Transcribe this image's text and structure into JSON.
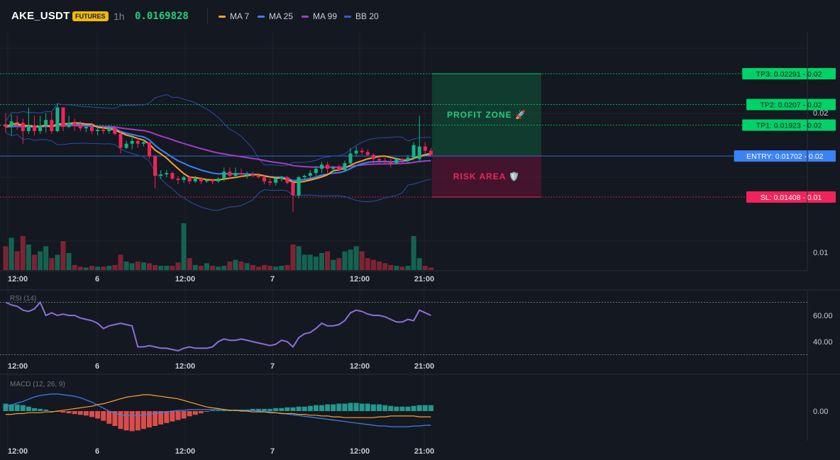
{
  "header": {
    "symbol": "AKE_USDT",
    "badge": "FUTURES",
    "timeframe": "1h",
    "price": "0.0169828",
    "legend": [
      {
        "label": "MA 7",
        "color": "#f7a32b"
      },
      {
        "label": "MA 25",
        "color": "#3b82f6"
      },
      {
        "label": "MA 99",
        "color": "#a43bc7"
      },
      {
        "label": "BB 20",
        "color": "#2f5fc9"
      }
    ]
  },
  "colors": {
    "up": "#13b585",
    "down": "#f0245a",
    "ma7": "#f7a32b",
    "ma25": "#3b82f6",
    "ma99": "#a43bc7",
    "bb": "#2a4ea8",
    "tp": "#00d26a",
    "entry": "#3b82f6",
    "sl": "#f0245a",
    "rsi": "#8b6fd6",
    "macd": "#3b82f6",
    "signal": "#f7a32b"
  },
  "chart_data": [
    {
      "type": "candlestick",
      "title": "",
      "x_ticks": [
        "12:00",
        "6",
        "12:00",
        "7",
        "12:00",
        "21:00"
      ],
      "y_ticks": [
        "0.02",
        "0.01"
      ],
      "levels": [
        {
          "label": "TP3: 0.02291",
          "axis_value": "0.02",
          "price": 0.02291
        },
        {
          "label": "TP2: 0.0207",
          "axis_value": "0.02",
          "price": 0.0207
        },
        {
          "label": "TP1: 0.01923",
          "axis_value": "0.02",
          "price": 0.01923
        },
        {
          "label": "ENTRY: 0.01702",
          "axis_value": "0.02",
          "price": 0.01702
        },
        {
          "label": "SL: 0.01408",
          "axis_value": "0.01",
          "price": 0.01408
        }
      ],
      "zones": [
        {
          "label": "PROFIT ZONE",
          "emoji": "🚀",
          "from": 0.01702,
          "to": 0.02291
        },
        {
          "label": "RISK AREA",
          "emoji": "🛡️",
          "from": 0.01408,
          "to": 0.01702
        }
      ],
      "candles": [
        {
          "o": 0.0193,
          "h": 0.0201,
          "l": 0.0187,
          "c": 0.0191
        },
        {
          "o": 0.0191,
          "h": 0.02,
          "l": 0.0185,
          "c": 0.0195
        },
        {
          "o": 0.01945,
          "h": 0.0199,
          "l": 0.0189,
          "c": 0.0194
        },
        {
          "o": 0.0194,
          "h": 0.0197,
          "l": 0.0179,
          "c": 0.0188
        },
        {
          "o": 0.0188,
          "h": 0.0205,
          "l": 0.0186,
          "c": 0.0192
        },
        {
          "o": 0.0192,
          "h": 0.0199,
          "l": 0.0185,
          "c": 0.0188
        },
        {
          "o": 0.0188,
          "h": 0.0199,
          "l": 0.0186,
          "c": 0.0192
        },
        {
          "o": 0.0192,
          "h": 0.0201,
          "l": 0.0187,
          "c": 0.0196
        },
        {
          "o": 0.0196,
          "h": 0.0202,
          "l": 0.0186,
          "c": 0.0188
        },
        {
          "o": 0.0188,
          "h": 0.0208,
          "l": 0.0187,
          "c": 0.0205
        },
        {
          "o": 0.0205,
          "h": 0.0205,
          "l": 0.0188,
          "c": 0.0191
        },
        {
          "o": 0.0191,
          "h": 0.0199,
          "l": 0.019,
          "c": 0.0194
        },
        {
          "o": 0.0194,
          "h": 0.0197,
          "l": 0.0188,
          "c": 0.0192
        },
        {
          "o": 0.0192,
          "h": 0.0195,
          "l": 0.0188,
          "c": 0.019
        },
        {
          "o": 0.019,
          "h": 0.0192,
          "l": 0.0187,
          "c": 0.0191
        },
        {
          "o": 0.0191,
          "h": 0.0194,
          "l": 0.0186,
          "c": 0.0188
        },
        {
          "o": 0.0188,
          "h": 0.0191,
          "l": 0.0185,
          "c": 0.0189
        },
        {
          "o": 0.0189,
          "h": 0.0191,
          "l": 0.0186,
          "c": 0.0188
        },
        {
          "o": 0.0188,
          "h": 0.0192,
          "l": 0.0186,
          "c": 0.019
        },
        {
          "o": 0.019,
          "h": 0.0191,
          "l": 0.0185,
          "c": 0.0186
        },
        {
          "o": 0.0186,
          "h": 0.0188,
          "l": 0.0172,
          "c": 0.0176
        },
        {
          "o": 0.0176,
          "h": 0.0181,
          "l": 0.0175,
          "c": 0.0179
        },
        {
          "o": 0.0179,
          "h": 0.0186,
          "l": 0.0175,
          "c": 0.0181
        },
        {
          "o": 0.0181,
          "h": 0.0183,
          "l": 0.0176,
          "c": 0.0179
        },
        {
          "o": 0.0179,
          "h": 0.0182,
          "l": 0.0177,
          "c": 0.018
        },
        {
          "o": 0.018,
          "h": 0.018,
          "l": 0.0168,
          "c": 0.017
        },
        {
          "o": 0.017,
          "h": 0.0171,
          "l": 0.0147,
          "c": 0.0156
        },
        {
          "o": 0.0156,
          "h": 0.016,
          "l": 0.0154,
          "c": 0.0157
        },
        {
          "o": 0.0157,
          "h": 0.016,
          "l": 0.0155,
          "c": 0.0158
        },
        {
          "o": 0.0158,
          "h": 0.0159,
          "l": 0.0153,
          "c": 0.0154
        },
        {
          "o": 0.0154,
          "h": 0.0156,
          "l": 0.015,
          "c": 0.0153
        },
        {
          "o": 0.0153,
          "h": 0.0156,
          "l": 0.0151,
          "c": 0.0155
        },
        {
          "o": 0.0155,
          "h": 0.0156,
          "l": 0.015,
          "c": 0.0152
        },
        {
          "o": 0.0152,
          "h": 0.0156,
          "l": 0.0151,
          "c": 0.0154
        },
        {
          "o": 0.0154,
          "h": 0.0155,
          "l": 0.015,
          "c": 0.0152
        },
        {
          "o": 0.0152,
          "h": 0.0154,
          "l": 0.0151,
          "c": 0.0153
        },
        {
          "o": 0.0153,
          "h": 0.0154,
          "l": 0.015,
          "c": 0.0152
        },
        {
          "o": 0.0152,
          "h": 0.0155,
          "l": 0.0151,
          "c": 0.0154
        },
        {
          "o": 0.0154,
          "h": 0.0162,
          "l": 0.0152,
          "c": 0.0159
        },
        {
          "o": 0.0159,
          "h": 0.0162,
          "l": 0.0154,
          "c": 0.0156
        },
        {
          "o": 0.0156,
          "h": 0.0162,
          "l": 0.0154,
          "c": 0.0158
        },
        {
          "o": 0.0158,
          "h": 0.0161,
          "l": 0.0155,
          "c": 0.0157
        },
        {
          "o": 0.0157,
          "h": 0.0159,
          "l": 0.0154,
          "c": 0.0157
        },
        {
          "o": 0.0157,
          "h": 0.0159,
          "l": 0.0155,
          "c": 0.0156
        },
        {
          "o": 0.0156,
          "h": 0.0158,
          "l": 0.0154,
          "c": 0.0155
        },
        {
          "o": 0.0155,
          "h": 0.0157,
          "l": 0.015,
          "c": 0.0152
        },
        {
          "o": 0.0152,
          "h": 0.0154,
          "l": 0.0149,
          "c": 0.0151
        },
        {
          "o": 0.0151,
          "h": 0.0155,
          "l": 0.0149,
          "c": 0.0154
        },
        {
          "o": 0.0154,
          "h": 0.0156,
          "l": 0.0152,
          "c": 0.0155
        },
        {
          "o": 0.0155,
          "h": 0.0156,
          "l": 0.015,
          "c": 0.0151
        },
        {
          "o": 0.0151,
          "h": 0.0152,
          "l": 0.013,
          "c": 0.0142
        },
        {
          "o": 0.0142,
          "h": 0.0156,
          "l": 0.014,
          "c": 0.0155
        },
        {
          "o": 0.0155,
          "h": 0.0157,
          "l": 0.0152,
          "c": 0.0156
        },
        {
          "o": 0.0156,
          "h": 0.016,
          "l": 0.0154,
          "c": 0.0158
        },
        {
          "o": 0.0158,
          "h": 0.0163,
          "l": 0.0156,
          "c": 0.0161
        },
        {
          "o": 0.0161,
          "h": 0.0166,
          "l": 0.0158,
          "c": 0.0164
        },
        {
          "o": 0.0164,
          "h": 0.0166,
          "l": 0.0158,
          "c": 0.0161
        },
        {
          "o": 0.0161,
          "h": 0.0163,
          "l": 0.0159,
          "c": 0.0162
        },
        {
          "o": 0.0162,
          "h": 0.0164,
          "l": 0.0158,
          "c": 0.016
        },
        {
          "o": 0.016,
          "h": 0.0167,
          "l": 0.0159,
          "c": 0.0165
        },
        {
          "o": 0.0165,
          "h": 0.0176,
          "l": 0.0163,
          "c": 0.0172
        },
        {
          "o": 0.0172,
          "h": 0.0177,
          "l": 0.017,
          "c": 0.0174
        },
        {
          "o": 0.0174,
          "h": 0.0176,
          "l": 0.0171,
          "c": 0.0173
        },
        {
          "o": 0.0173,
          "h": 0.0175,
          "l": 0.017,
          "c": 0.0171
        },
        {
          "o": 0.0171,
          "h": 0.0172,
          "l": 0.0165,
          "c": 0.0168
        },
        {
          "o": 0.0168,
          "h": 0.017,
          "l": 0.0164,
          "c": 0.0167
        },
        {
          "o": 0.0167,
          "h": 0.0169,
          "l": 0.0164,
          "c": 0.0166
        },
        {
          "o": 0.0166,
          "h": 0.0168,
          "l": 0.0162,
          "c": 0.0165
        },
        {
          "o": 0.0165,
          "h": 0.0169,
          "l": 0.0164,
          "c": 0.0168
        },
        {
          "o": 0.0168,
          "h": 0.0169,
          "l": 0.0165,
          "c": 0.0167
        },
        {
          "o": 0.0167,
          "h": 0.0171,
          "l": 0.0165,
          "c": 0.0169
        },
        {
          "o": 0.0169,
          "h": 0.018,
          "l": 0.0167,
          "c": 0.0178
        },
        {
          "o": 0.0168,
          "h": 0.0199,
          "l": 0.0166,
          "c": 0.0177
        },
        {
          "o": 0.0177,
          "h": 0.018,
          "l": 0.0172,
          "c": 0.0174
        },
        {
          "o": 0.0174,
          "h": 0.0176,
          "l": 0.017,
          "c": 0.0171
        }
      ],
      "volume": [
        28,
        38,
        22,
        40,
        30,
        18,
        22,
        28,
        14,
        18,
        34,
        20,
        6,
        4,
        3,
        5,
        4,
        4,
        5,
        6,
        18,
        10,
        8,
        10,
        9,
        8,
        6,
        5,
        5,
        5,
        9,
        55,
        14,
        6,
        5,
        8,
        5,
        4,
        5,
        10,
        12,
        10,
        8,
        6,
        4,
        6,
        5,
        4,
        5,
        6,
        30,
        28,
        18,
        18,
        16,
        20,
        22,
        12,
        14,
        22,
        24,
        28,
        22,
        14,
        12,
        10,
        8,
        6,
        5,
        4,
        5,
        40,
        14,
        5,
        3
      ]
    },
    {
      "type": "line",
      "title": "RSI (14)",
      "y_ticks": [
        "60.00",
        "40.00"
      ],
      "x_ticks": [
        "12:00",
        "6",
        "12:00",
        "7",
        "12:00",
        "21:00"
      ],
      "series": [
        {
          "values": [
            70,
            68,
            67,
            64,
            63,
            65,
            70,
            60,
            62,
            60,
            61,
            60,
            60,
            58,
            57,
            56,
            54,
            50,
            52,
            53,
            54,
            53,
            52,
            36,
            36,
            37,
            36,
            35,
            35,
            34,
            33,
            35,
            36,
            35,
            35,
            35,
            36,
            40,
            42,
            41,
            41,
            42,
            41,
            40,
            39,
            38,
            37,
            38,
            41,
            40,
            36,
            43,
            46,
            47,
            50,
            54,
            52,
            52,
            53,
            56,
            62,
            64,
            63,
            61,
            60,
            60,
            59,
            57,
            55,
            55,
            57,
            56,
            64,
            62,
            60
          ]
        }
      ]
    },
    {
      "type": "bar",
      "title": "MACD (12, 26, 9)",
      "y_ticks": [
        "0.00"
      ],
      "x_ticks": [
        "12:00",
        "6",
        "12:00",
        "7",
        "12:00",
        "21:00"
      ],
      "series": [
        {
          "values": [
            10,
            9,
            9,
            8,
            6,
            4,
            3,
            2,
            0,
            -1,
            -2,
            -3,
            -4,
            -5,
            -6,
            -8,
            -10,
            -13,
            -17,
            -20,
            -24,
            -26,
            -27,
            -26,
            -24,
            -22,
            -20,
            -18,
            -16,
            -14,
            -12,
            -10,
            -7,
            -5,
            -3,
            -1,
            1,
            1,
            2,
            2,
            2,
            2,
            2,
            3,
            3,
            3,
            3,
            4,
            4,
            5,
            5,
            6,
            6,
            7,
            8,
            8,
            9,
            9,
            10,
            10,
            11,
            11,
            10,
            10,
            9,
            9,
            8,
            7,
            6,
            6,
            6,
            7,
            8,
            8,
            8
          ]
        },
        {
          "values": [
            -6,
            -8,
            -11,
            -13,
            -16,
            -19,
            -21,
            -22,
            -23,
            -23,
            -22,
            -21,
            -20,
            -18,
            -15,
            -12,
            -8,
            -4,
            0,
            3,
            5,
            6,
            6,
            6,
            5,
            4,
            3,
            2,
            1,
            0,
            -1,
            -1,
            -2,
            -2,
            -2,
            -2,
            -2,
            -2,
            -2,
            -1,
            -1,
            -1,
            -1,
            -1,
            0,
            1,
            1,
            2,
            3,
            4,
            5,
            6,
            7,
            8,
            9,
            10,
            11,
            12,
            13,
            14,
            15,
            16,
            17,
            18,
            19,
            20,
            20,
            21,
            21,
            21,
            21,
            20,
            20,
            19,
            19
          ]
        },
        {
          "values": [
            4,
            4,
            3,
            3,
            2,
            2,
            2,
            1,
            1,
            0,
            -1,
            -2,
            -3,
            -4,
            -5,
            -6,
            -8,
            -9,
            -11,
            -13,
            -15,
            -17,
            -18,
            -19,
            -20,
            -20,
            -19,
            -18,
            -17,
            -16,
            -15,
            -13,
            -11,
            -9,
            -7,
            -5,
            -4,
            -3,
            -2,
            -1,
            -1,
            0,
            0,
            1,
            1,
            1,
            2,
            2,
            3,
            3,
            3,
            4,
            4,
            5,
            5,
            6,
            6,
            7,
            7,
            8,
            8,
            8,
            8,
            8,
            8,
            7,
            7,
            6,
            6,
            6,
            6,
            6,
            7,
            7,
            7
          ]
        }
      ]
    }
  ]
}
